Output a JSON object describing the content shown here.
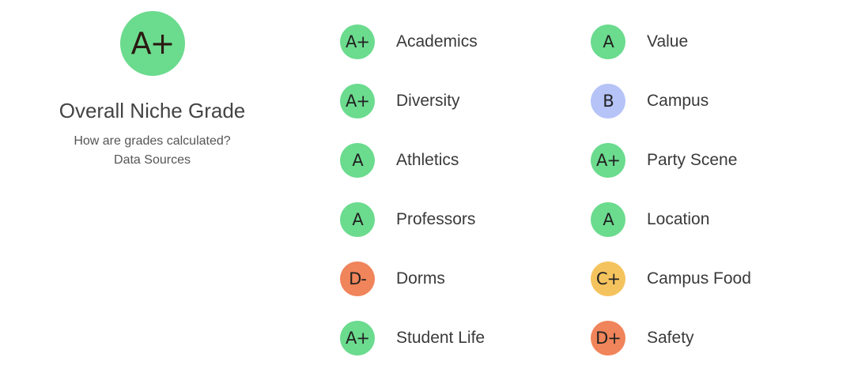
{
  "overall": {
    "grade": "A+",
    "title": "Overall Niche Grade",
    "how_link": "How are grades calculated?",
    "sources_link": "Data Sources",
    "color": "#6bdb8e"
  },
  "grades_left": [
    {
      "grade": "A+",
      "label": "Academics",
      "color": "#6bdb8e"
    },
    {
      "grade": "A+",
      "label": "Diversity",
      "color": "#6bdb8e"
    },
    {
      "grade": "A",
      "label": "Athletics",
      "color": "#6bdb8e"
    },
    {
      "grade": "A",
      "label": "Professors",
      "color": "#6bdb8e"
    },
    {
      "grade": "D-",
      "label": "Dorms",
      "color": "#f0845a"
    },
    {
      "grade": "A+",
      "label": "Student Life",
      "color": "#6bdb8e"
    }
  ],
  "grades_right": [
    {
      "grade": "A",
      "label": "Value",
      "color": "#6bdb8e"
    },
    {
      "grade": "B",
      "label": "Campus",
      "color": "#b5c3f7"
    },
    {
      "grade": "A+",
      "label": "Party Scene",
      "color": "#6bdb8e"
    },
    {
      "grade": "A",
      "label": "Location",
      "color": "#6bdb8e"
    },
    {
      "grade": "C+",
      "label": "Campus Food",
      "color": "#f5c35e"
    },
    {
      "grade": "D+",
      "label": "Safety",
      "color": "#f0845a"
    }
  ]
}
